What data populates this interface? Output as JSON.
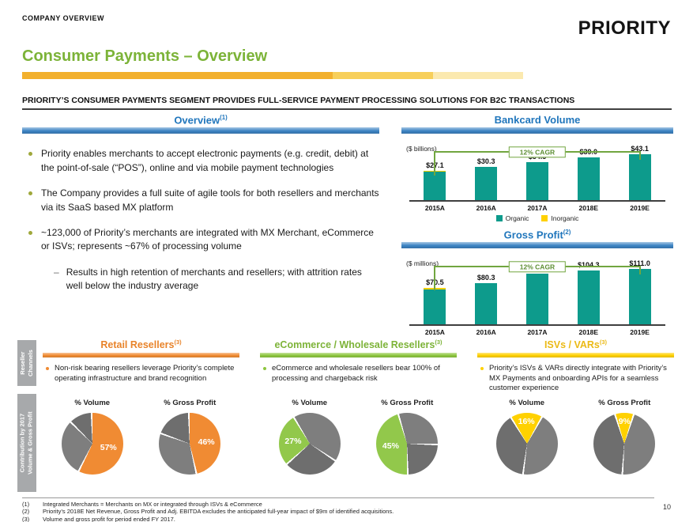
{
  "page": {
    "kicker": "COMPANY OVERVIEW",
    "logo": "PRIORITY",
    "title": "Consumer Payments – Overview",
    "headline": "PRIORITY’S CONSUMER PAYMENTS SEGMENT PROVIDES FULL-SERVICE PAYMENT PROCESSING SOLUTIONS FOR B2C TRANSACTIONS",
    "page_number": "10"
  },
  "overview": {
    "header": "Overview",
    "header_sup": "(1)",
    "bullets": [
      "Priority enables merchants to accept electronic payments (e.g. credit, debit) at the point-of-sale (“POS”), online and via mobile payment technologies",
      "The Company provides a full suite of agile tools for both resellers and merchants via its SaaS based MX platform",
      "~123,000 of Priority’s merchants are integrated with MX Merchant, eCommerce or ISVs; represents ~67% of processing volume"
    ],
    "sub_bullet": "Results in high retention of merchants and resellers; with attrition rates well below the industry average"
  },
  "chart_data": [
    {
      "type": "bar",
      "title": "Bankcard Volume",
      "unit_label": "($ billions)",
      "cagr_label": "12% CAGR",
      "categories": [
        "2015A",
        "2016A",
        "2017A",
        "2018E",
        "2019E"
      ],
      "series": [
        {
          "name": "Organic",
          "values": [
            25.8,
            30.3,
            34.5,
            39.0,
            43.1
          ],
          "color": "#0D9B8C"
        },
        {
          "name": "Inorganic",
          "values": [
            1.3,
            0,
            0,
            0,
            0
          ],
          "color": "#FFD100"
        }
      ],
      "totals_labels": [
        "$27.1",
        "$30.3",
        "$34.5",
        "$39.0",
        "$43.1"
      ],
      "ylim": [
        0,
        52
      ],
      "legend": [
        "Organic",
        "Inorganic"
      ],
      "grid": false
    },
    {
      "type": "bar",
      "title": "Gross Profit",
      "title_sup": "(2)",
      "unit_label": "($ millions)",
      "cagr_label": "12% CAGR",
      "categories": [
        "2015A",
        "2016A",
        "2017A",
        "2018E",
        "2019E"
      ],
      "series": [
        {
          "name": "Organic",
          "values": [
            68.0,
            80.3,
            97.4,
            104.3,
            111.0
          ],
          "color": "#0D9B8C"
        },
        {
          "name": "Inorganic",
          "values": [
            2.5,
            0,
            0,
            0,
            0
          ],
          "color": "#FFD100"
        }
      ],
      "totals_labels": [
        "$70.5",
        "$80.3",
        "$97.4",
        "$104.3",
        "$111.0"
      ],
      "ylim": [
        0,
        128
      ],
      "grid": false
    }
  ],
  "side_labels": [
    {
      "lines": [
        "Reseller",
        "Channels"
      ]
    },
    {
      "lines": [
        "Contribution by 2017",
        "Volume & Gross Profit"
      ]
    }
  ],
  "channels": [
    {
      "title": "Retail Resellers",
      "sup": "(3)",
      "title_color": "#E8832A",
      "accent": "#F08B33",
      "bullet": "Non-risk bearing resellers leverage Priority’s complete operating infrastructure and brand recognition",
      "pies": [
        {
          "label": "% Volume",
          "value": 57,
          "color": "#F08B33",
          "start": 0,
          "split": 87,
          "type": "pie"
        },
        {
          "label": "% Gross Profit",
          "value": 46,
          "color": "#F08B33",
          "start": 0,
          "split": 80,
          "type": "pie"
        }
      ]
    },
    {
      "title": "eCommerce / Wholesale Resellers",
      "sup": "(3)",
      "title_color": "#7DB338",
      "accent": "#8DC63F",
      "bullet": "eCommerce and wholesale resellers bear 100% of processing and chargeback risk",
      "pies": [
        {
          "label": "% Volume",
          "value": 27,
          "color": "#92C84B",
          "start": 230,
          "split": 70,
          "type": "pie"
        },
        {
          "label": "% Gross Profit",
          "value": 45,
          "color": "#92C84B",
          "start": 180,
          "split": 75,
          "type": "pie"
        }
      ]
    },
    {
      "title": "ISVs / VARs",
      "sup": "(3)",
      "title_color": "#EBBA16",
      "accent": "#FFD100",
      "bullet": "Priority’s ISVs & VARs directly integrate with Priority’s MX Payments and onboarding APIs for a seamless customer experience",
      "pies": [
        {
          "label": "% Volume",
          "value": 16,
          "color": "#FFD100",
          "start": -30,
          "split": 60,
          "type": "pie"
        },
        {
          "label": "% Gross Profit",
          "value": 9,
          "color": "#FFD100",
          "start": -16,
          "split": 55,
          "type": "pie"
        }
      ]
    }
  ],
  "footnotes": [
    {
      "num": "(1)",
      "text": "Integrated Merchants = Merchants on MX or integrated through ISVs & eCommerce"
    },
    {
      "num": "(2)",
      "text": "Priority’s 2018E Net Revenue, Gross Profit and Adj. EBITDA excludes the anticipated full-year impact of $9m of identified acquisitions."
    },
    {
      "num": "(3)",
      "text": "Volume and gross profit for period ended FY 2017."
    }
  ],
  "colors": {
    "teal": "#0D9B8C",
    "inorganic_yellow": "#FFD100",
    "header_blue": "#2076BC",
    "title_green": "#7CB338",
    "cagr_green": "#71A63F",
    "pie_gray": "#7E7E7E"
  }
}
